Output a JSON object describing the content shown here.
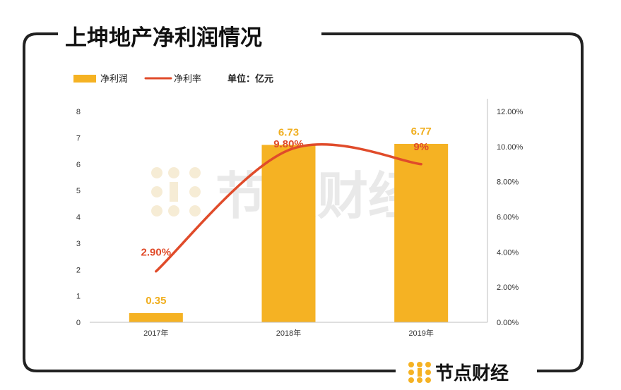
{
  "title": "上坤地产净利润情况",
  "legend": {
    "bar_label": "净利润",
    "line_label": "净利率",
    "unit": "单位：亿元"
  },
  "watermark": "节点财经",
  "brand": "节点财经",
  "colors": {
    "bar": "#F5B223",
    "line": "#E04B2A",
    "bar_label": "#F0AE1E",
    "rate_label": "#E04B2A"
  },
  "chart_data": {
    "type": "bar",
    "categories": [
      "2017年",
      "2018年",
      "2019年"
    ],
    "series": [
      {
        "name": "净利润",
        "type": "bar",
        "axis": "left",
        "values": [
          0.35,
          6.73,
          6.77
        ]
      },
      {
        "name": "净利率",
        "type": "line",
        "axis": "right",
        "values": [
          2.9,
          9.8,
          9.0
        ]
      }
    ],
    "bar_labels": [
      "0.35",
      "6.73",
      "6.77"
    ],
    "rate_labels": [
      "2.90%",
      "9.80%",
      "9%"
    ],
    "left_axis": {
      "min": 0,
      "max": 8,
      "ticks": [
        "0",
        "1",
        "2",
        "3",
        "4",
        "5",
        "6",
        "7",
        "8"
      ]
    },
    "right_axis": {
      "min": 0,
      "max": 12,
      "ticks": [
        "0.00%",
        "2.00%",
        "4.00%",
        "6.00%",
        "8.00%",
        "10.00%",
        "12.00%"
      ]
    },
    "unit": "亿元"
  }
}
